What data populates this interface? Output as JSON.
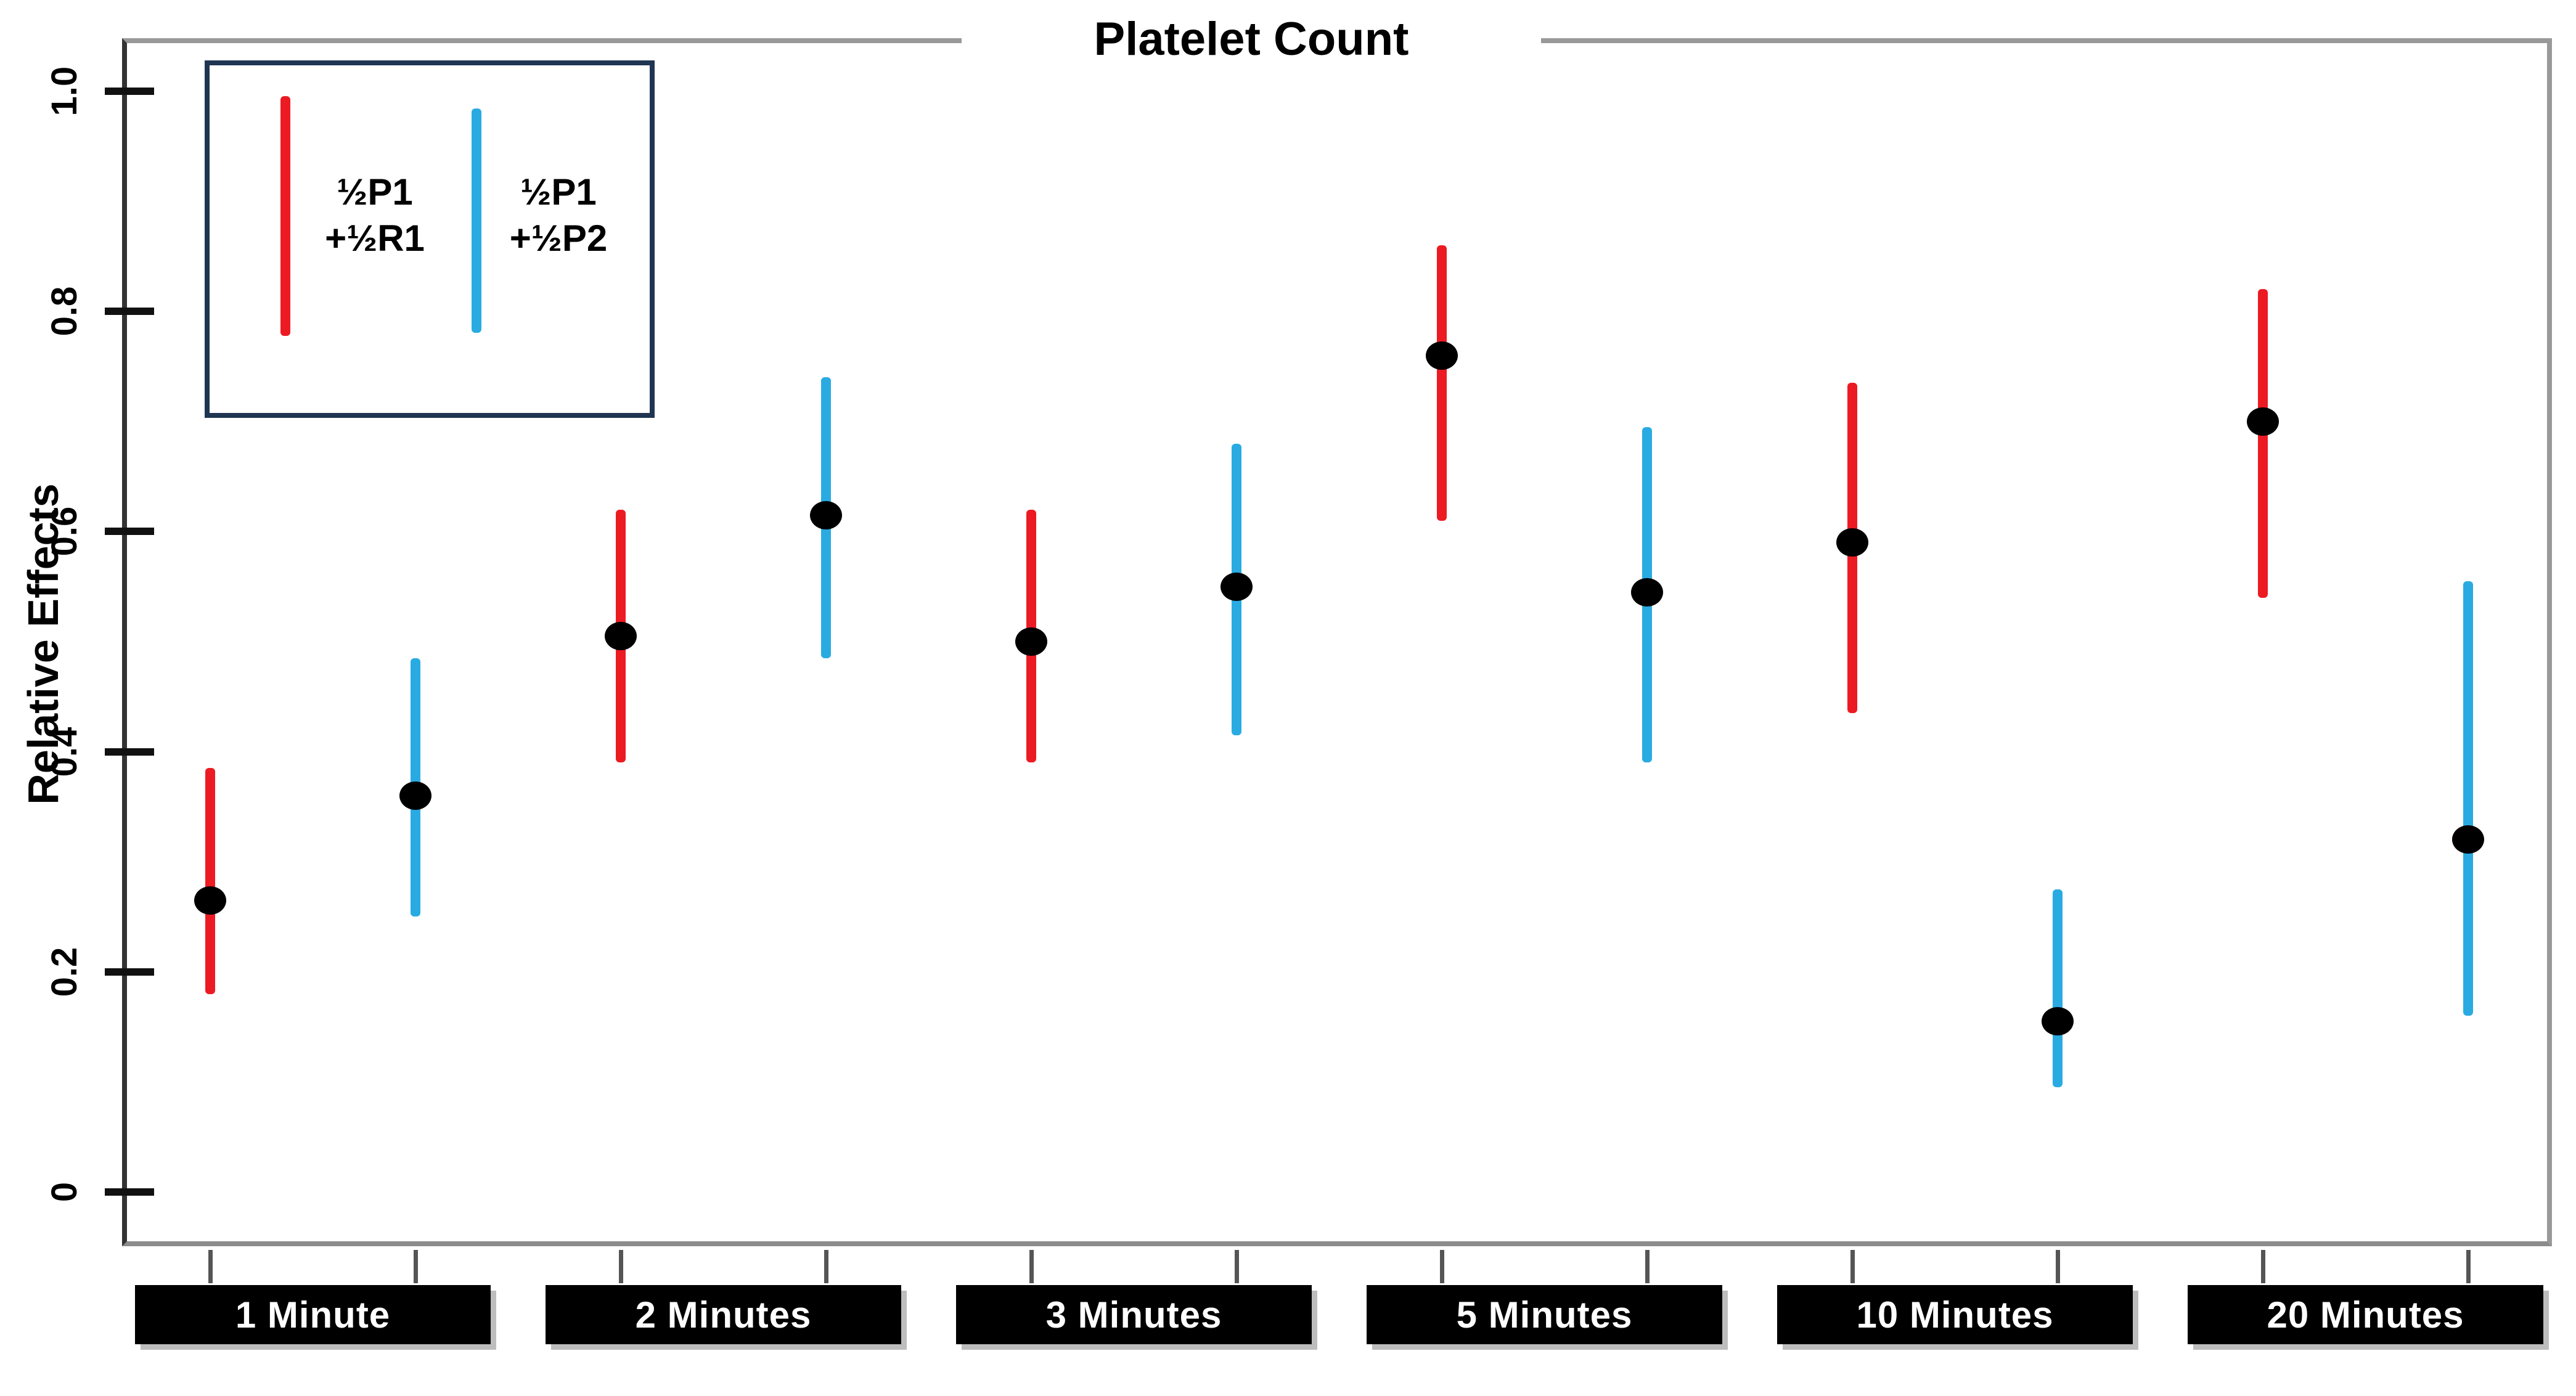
{
  "chart_data": {
    "type": "scatter",
    "subtype": "point-with-error-bars",
    "title": "Platelet Count",
    "xlabel": "",
    "ylabel": "Relative Effects",
    "ylim": [
      0,
      1.0
    ],
    "yticks": [
      0,
      0.2,
      0.4,
      0.6,
      0.8,
      1.0
    ],
    "ytick_labels": [
      "0",
      "0.2",
      "0.4",
      "0.6",
      "0.8",
      "1.0"
    ],
    "grid": "off",
    "legend_position": "top-left",
    "categories": [
      "1 Minute",
      "2 Minutes",
      "3 Minutes",
      "5 Minutes",
      "10 Minutes",
      "20 Minutes"
    ],
    "series": [
      {
        "name": "½P1 +½R1",
        "legend_lines": [
          "½P1",
          "+½R1"
        ],
        "color": "#ec1b23",
        "points": [
          {
            "category": "1 Minute",
            "low": 0.18,
            "mid": 0.265,
            "high": 0.385
          },
          {
            "category": "2 Minutes",
            "low": 0.39,
            "mid": 0.505,
            "high": 0.62
          },
          {
            "category": "3 Minutes",
            "low": 0.39,
            "mid": 0.5,
            "high": 0.62
          },
          {
            "category": "5 Minutes",
            "low": 0.61,
            "mid": 0.76,
            "high": 0.86
          },
          {
            "category": "10 Minutes",
            "low": 0.435,
            "mid": 0.59,
            "high": 0.735
          },
          {
            "category": "20 Minutes",
            "low": 0.54,
            "mid": 0.7,
            "high": 0.82
          }
        ]
      },
      {
        "name": "½P1 +½P2",
        "legend_lines": [
          "½P1",
          "+½P2"
        ],
        "color": "#29abe2",
        "points": [
          {
            "category": "1 Minute",
            "low": 0.25,
            "mid": 0.36,
            "high": 0.485
          },
          {
            "category": "2 Minutes",
            "low": 0.485,
            "mid": 0.615,
            "high": 0.74
          },
          {
            "category": "3 Minutes",
            "low": 0.415,
            "mid": 0.55,
            "high": 0.68
          },
          {
            "category": "5 Minutes",
            "low": 0.39,
            "mid": 0.545,
            "high": 0.695
          },
          {
            "category": "10 Minutes",
            "low": 0.095,
            "mid": 0.155,
            "high": 0.275
          },
          {
            "category": "20 Minutes",
            "low": 0.16,
            "mid": 0.32,
            "high": 0.555
          }
        ]
      }
    ],
    "marker": {
      "shape": "filled-oval",
      "color": "#000000"
    },
    "colors": {
      "series_red": "#ec1b23",
      "series_blue": "#29abe2",
      "frame_border": "#999999",
      "axis_line": "#333333",
      "tick": "#111111",
      "minor_tick": "#555555",
      "category_box_bg": "#000000",
      "category_box_text": "#ffffff",
      "legend_border": "#1f3552",
      "background": "#ffffff"
    }
  }
}
